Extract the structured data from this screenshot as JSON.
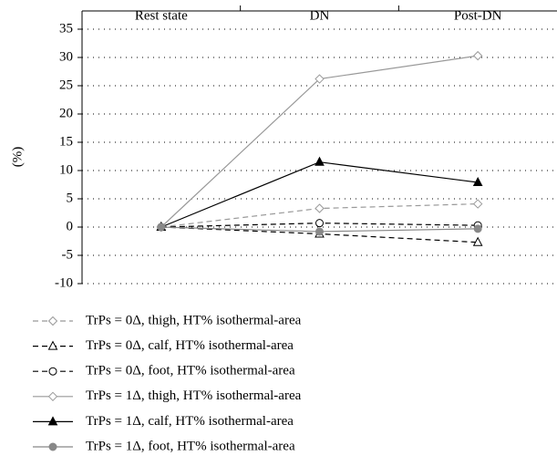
{
  "chart_data": {
    "type": "line",
    "ylabel": "(%)",
    "categories": [
      "Rest state",
      "DN",
      "Post-DN"
    ],
    "ylim": [
      -10,
      35
    ],
    "yticks": [
      -10,
      -5,
      0,
      5,
      10,
      15,
      20,
      25,
      30,
      35
    ],
    "grid": true,
    "legend": "bottom",
    "series": [
      {
        "name": "TrPs = 0Δ, thigh, HT% isothermal-area",
        "color": "#999999",
        "dash": true,
        "marker": "diamond",
        "filled": false,
        "values": [
          0,
          3.3,
          4.1
        ]
      },
      {
        "name": "TrPs = 0Δ, calf, HT% isothermal-area",
        "color": "#000000",
        "dash": true,
        "marker": "triangle",
        "filled": false,
        "values": [
          0,
          -1.2,
          -2.7
        ]
      },
      {
        "name": "TrPs = 0Δ, foot, HT% isothermal-area",
        "color": "#000000",
        "dash": true,
        "marker": "circle",
        "filled": false,
        "values": [
          0,
          0.7,
          0.3
        ]
      },
      {
        "name": "TrPs = 1Δ, thigh, HT% isothermal-area",
        "color": "#999999",
        "dash": false,
        "marker": "diamond",
        "filled": false,
        "values": [
          0,
          26.2,
          30.3
        ]
      },
      {
        "name": "TrPs = 1Δ, calf, HT% isothermal-area",
        "color": "#000000",
        "dash": false,
        "marker": "triangle",
        "filled": true,
        "values": [
          0,
          11.5,
          7.9
        ]
      },
      {
        "name": "TrPs = 1Δ, foot, HT% isothermal-area",
        "color": "#888888",
        "dash": false,
        "marker": "circle",
        "filled": true,
        "values": [
          0,
          -0.8,
          -0.3
        ]
      }
    ]
  }
}
